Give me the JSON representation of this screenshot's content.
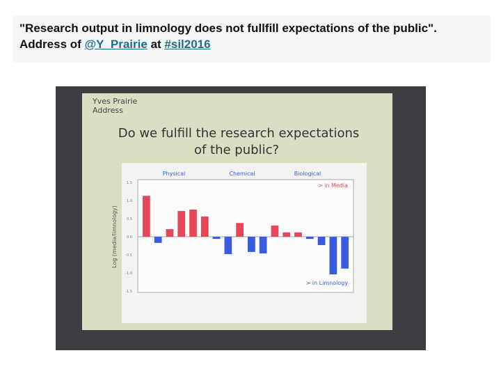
{
  "header": {
    "text_before": "\"Research output in limnology does not fullfill expectations of the public\". Address of",
    "mention": "@Y_Prairie",
    "text_middle": "at",
    "hashtag": "#sil2016"
  },
  "slide": {
    "speaker": "Yves Prairie",
    "subtitle": "Address",
    "title_line1": "Do we fulfill the research expectations",
    "title_line2": "of the public?"
  },
  "chart_data": {
    "type": "bar",
    "group_labels": [
      "Physical",
      "Chemical",
      "Biological"
    ],
    "ylabel": "Log (media/limnology)",
    "annotations": [
      "> in Media",
      "> in Limnology"
    ],
    "values": [
      1.13,
      -0.17,
      0.21,
      0.71,
      0.75,
      0.56,
      -0.06,
      -0.48,
      0.38,
      -0.42,
      -0.46,
      0.31,
      0.12,
      0.12,
      -0.06,
      -0.23,
      -1.04,
      -0.88
    ],
    "positive_color": "#e8475a",
    "negative_color": "#3a5be0",
    "ylim": [
      -1.5,
      1.5
    ],
    "yticks": [
      {
        "value": 1.5,
        "label": "1.5"
      },
      {
        "value": 1,
        "label": "1.0"
      },
      {
        "value": 0.5,
        "label": "0.5"
      },
      {
        "value": 0,
        "label": "0.0"
      },
      {
        "value": -0.5,
        "label": "-0.5"
      },
      {
        "value": -1,
        "label": "-1.0"
      },
      {
        "value": -1.5,
        "label": "-1.5"
      }
    ]
  }
}
